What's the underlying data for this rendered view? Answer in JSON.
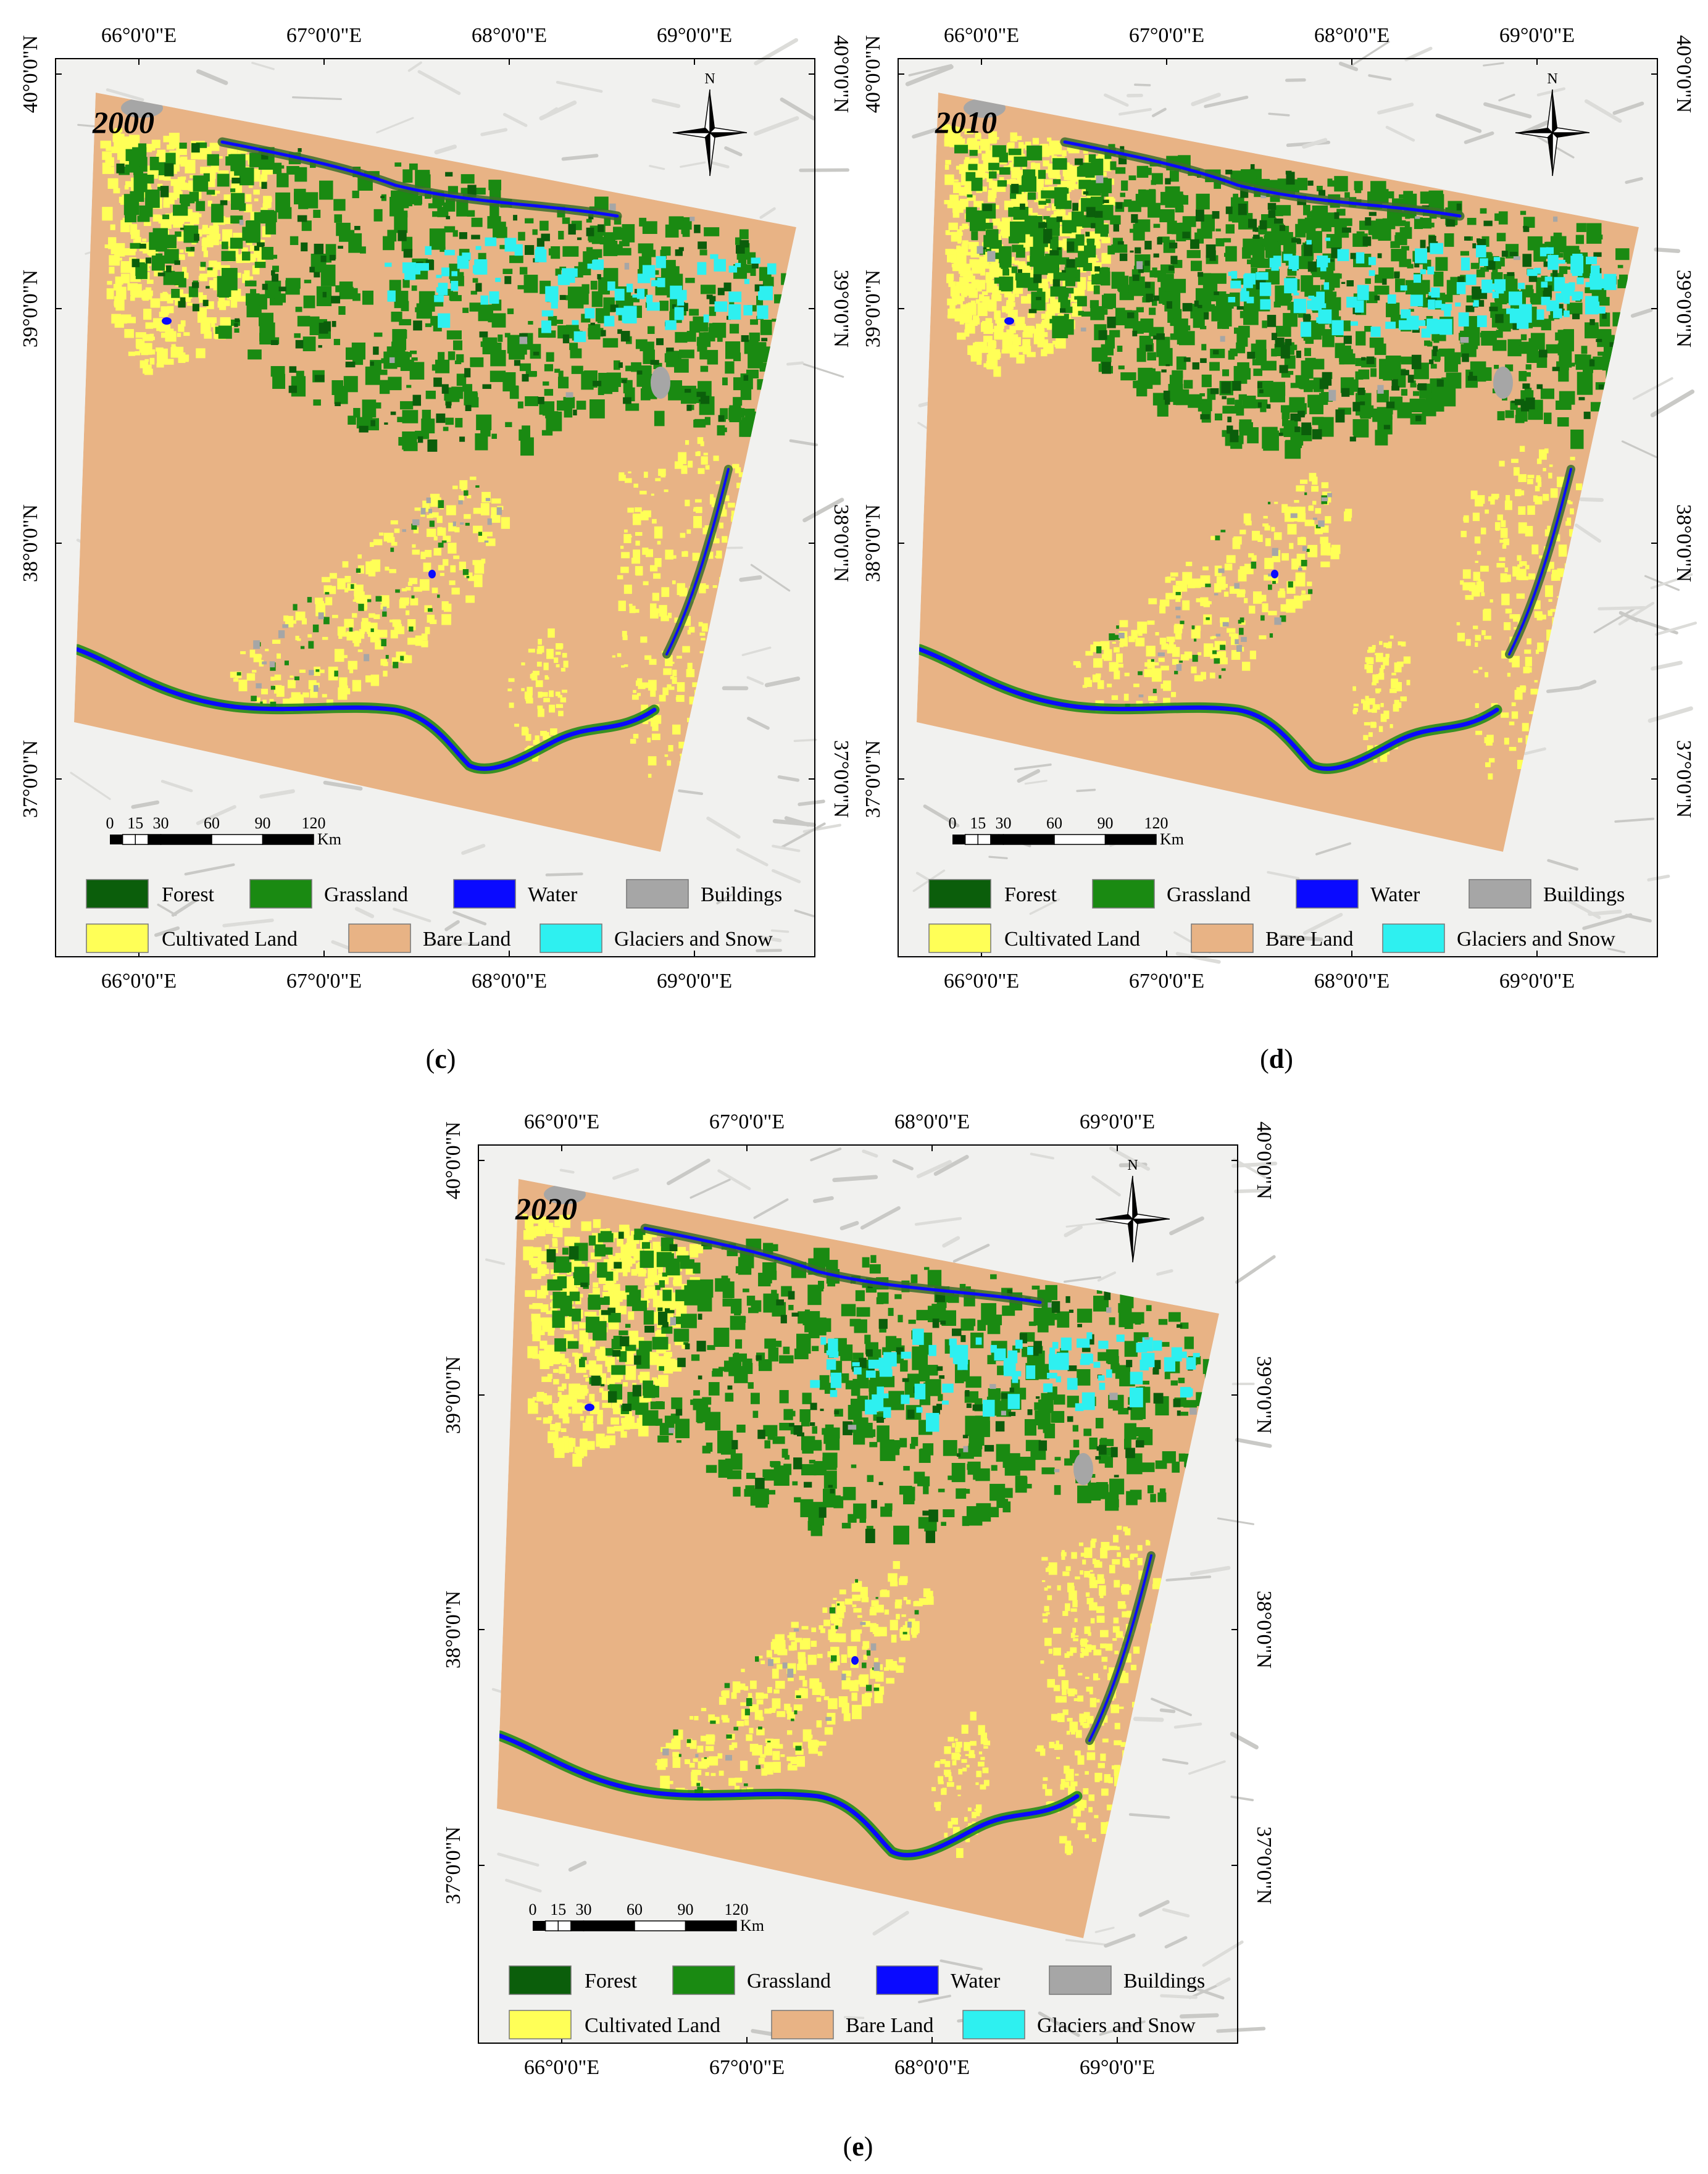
{
  "panels": [
    {
      "year": "2000",
      "caption_letter": "c"
    },
    {
      "year": "2010",
      "caption_letter": "d"
    },
    {
      "year": "2020",
      "caption_letter": "e"
    }
  ],
  "longitude_labels": [
    "66°0'0\"E",
    "67°0'0\"E",
    "68°0'0\"E",
    "69°0'0\"E"
  ],
  "latitude_labels": [
    "40°0'0\"N",
    "39°0'0\"N",
    "38°0'0\"N",
    "37°0'0\"N"
  ],
  "north_arrow_label": "N",
  "scale_bar": {
    "ticks": [
      "0",
      "15",
      "30",
      "60",
      "90",
      "120"
    ],
    "unit": "Km"
  },
  "legend": [
    {
      "label": "Forest",
      "color": "#0b5e0b"
    },
    {
      "label": "Grassland",
      "color": "#1a8a12"
    },
    {
      "label": "Water",
      "color": "#0a0aff"
    },
    {
      "label": "Buildings",
      "color": "#a6a6a6"
    },
    {
      "label": "Cultivated Land",
      "color": "#ffff57"
    },
    {
      "label": "Bare Land",
      "color": "#e8b385"
    },
    {
      "label": "Glaciers and Snow",
      "color": "#2ef0f0"
    }
  ],
  "colors": {
    "relief_bg": "#f1f1ef",
    "frame": "#000000"
  }
}
